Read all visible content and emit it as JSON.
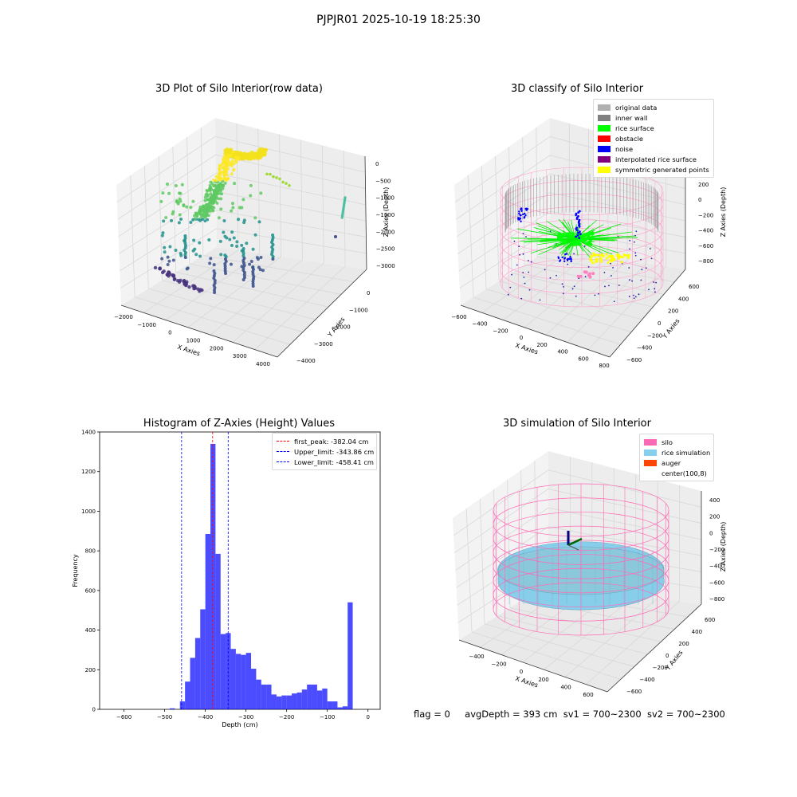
{
  "suptitle": "PJPJR01 2025-10-19 18:25:30",
  "footer": {
    "flag": "flag = 0",
    "avg": "avgDepth = 393 cm",
    "sv1": "sv1 = 700~2300",
    "sv2": "sv2 = 700~2300"
  },
  "chart_data": [
    {
      "type": "scatter",
      "title": "3D Plot of Silo Interior(row data)",
      "xlabel": "X Axies",
      "ylabel": "Y Axies",
      "zlabel": "Z Axies (Depth)",
      "x_ticks": [
        "−2000",
        "−1000",
        "0",
        "1000",
        "2000",
        "3000",
        "4000"
      ],
      "y_ticks": [
        "0",
        "−1000",
        "−2000",
        "−3000",
        "−4000"
      ],
      "z_ticks": [
        "0",
        "−500",
        "−1000",
        "−1500",
        "−2000",
        "−2500",
        "−3000"
      ],
      "colormap": [
        "#fde725",
        "#5ec962",
        "#21918c",
        "#3b528b",
        "#440154"
      ]
    },
    {
      "type": "scatter",
      "title": "3D classify of Silo Interior",
      "xlabel": "X Axies",
      "ylabel": "Y Axies",
      "zlabel": "Z Axies (Depth)",
      "x_ticks": [
        "−600",
        "−400",
        "−200",
        "0",
        "200",
        "400",
        "600",
        "800"
      ],
      "y_ticks": [
        "600",
        "400",
        "200",
        "0",
        "−200",
        "−400",
        "−600"
      ],
      "z_ticks": [
        "200",
        "0",
        "−200",
        "−400",
        "−600",
        "−800"
      ],
      "legend": [
        {
          "label": "original data",
          "color": "#b0b0b0"
        },
        {
          "label": "inner wall",
          "color": "#808080"
        },
        {
          "label": "rice surface",
          "color": "#00ff00"
        },
        {
          "label": "obstacle",
          "color": "#ff0000"
        },
        {
          "label": "noise",
          "color": "#0000ff"
        },
        {
          "label": "interpolated rice surface",
          "color": "#800080"
        },
        {
          "label": "symmetric generated points",
          "color": "#ffff00"
        }
      ],
      "series": [
        {
          "name": "inner wall",
          "shape": "cylinder",
          "color": "#999999"
        },
        {
          "name": "rice surface",
          "color": "#00ff00"
        },
        {
          "name": "noise",
          "color": "#0000ff"
        },
        {
          "name": "symmetric generated points",
          "color": "#ffff00"
        }
      ]
    },
    {
      "type": "bar",
      "title": "Histogram of Z-Axies (Height) Values",
      "xlabel": "Depth (cm)",
      "ylabel": "Frequency",
      "xlim": [
        -660,
        30
      ],
      "ylim": [
        0,
        1400
      ],
      "bar_color": "#0000ff",
      "x_ticks": [
        "−600",
        "−500",
        "−400",
        "−300",
        "−200",
        "−100",
        "0"
      ],
      "y_ticks": [
        "0",
        "200",
        "400",
        "600",
        "800",
        "1000",
        "1200",
        "1400"
      ],
      "bin_width": 12.5,
      "bins": [
        {
          "start": -487.5,
          "count": 5
        },
        {
          "start": -475,
          "count": 0
        },
        {
          "start": -462.5,
          "count": 40
        },
        {
          "start": -450,
          "count": 140
        },
        {
          "start": -437.5,
          "count": 260
        },
        {
          "start": -425,
          "count": 360
        },
        {
          "start": -412.5,
          "count": 505
        },
        {
          "start": -400,
          "count": 885
        },
        {
          "start": -387.5,
          "count": 1340
        },
        {
          "start": -375,
          "count": 785
        },
        {
          "start": -362.5,
          "count": 380
        },
        {
          "start": -350,
          "count": 385
        },
        {
          "start": -337.5,
          "count": 305
        },
        {
          "start": -325,
          "count": 280
        },
        {
          "start": -312.5,
          "count": 275
        },
        {
          "start": -300,
          "count": 285
        },
        {
          "start": -287.5,
          "count": 205
        },
        {
          "start": -275,
          "count": 150
        },
        {
          "start": -262.5,
          "count": 125
        },
        {
          "start": -250,
          "count": 125
        },
        {
          "start": -237.5,
          "count": 75
        },
        {
          "start": -225,
          "count": 65
        },
        {
          "start": -212.5,
          "count": 70
        },
        {
          "start": -200,
          "count": 70
        },
        {
          "start": -187.5,
          "count": 80
        },
        {
          "start": -175,
          "count": 85
        },
        {
          "start": -162.5,
          "count": 100
        },
        {
          "start": -150,
          "count": 125
        },
        {
          "start": -137.5,
          "count": 125
        },
        {
          "start": -125,
          "count": 95
        },
        {
          "start": -112.5,
          "count": 105
        },
        {
          "start": -100,
          "count": 40
        },
        {
          "start": -87.5,
          "count": 40
        },
        {
          "start": -75,
          "count": 10
        },
        {
          "start": -62.5,
          "count": 15
        },
        {
          "start": -50,
          "count": 540
        }
      ],
      "vlines": [
        {
          "label": "first_peak: -382.04 cm",
          "value": -382.04,
          "color": "#ff0000"
        },
        {
          "label": "Upper_limit: -343.86 cm",
          "value": -343.86,
          "color": "#0000ff"
        },
        {
          "label": "Lower_limit: -458.41 cm",
          "value": -458.41,
          "color": "#0000ff"
        }
      ],
      "legend_position": "upper right"
    },
    {
      "type": "surface",
      "title": "3D simulation of Silo Interior",
      "xlabel": "X Axies",
      "ylabel": "Y Axies",
      "zlabel": "Z Axies (Depth)",
      "x_ticks": [
        "−400",
        "−200",
        "0",
        "200",
        "400",
        "600"
      ],
      "y_ticks": [
        "600",
        "400",
        "200",
        "0",
        "−200",
        "−400",
        "−600"
      ],
      "z_ticks": [
        "400",
        "200",
        "0",
        "−200",
        "−400",
        "−600",
        "−800"
      ],
      "legend": [
        {
          "label": "silo",
          "color": "#ff69b4"
        },
        {
          "label": "rice simulation",
          "color": "#87ceeb"
        },
        {
          "label": "auger",
          "color": "#ff4500"
        },
        {
          "label": "center(100,8)",
          "color": "#ffffff"
        }
      ]
    }
  ]
}
